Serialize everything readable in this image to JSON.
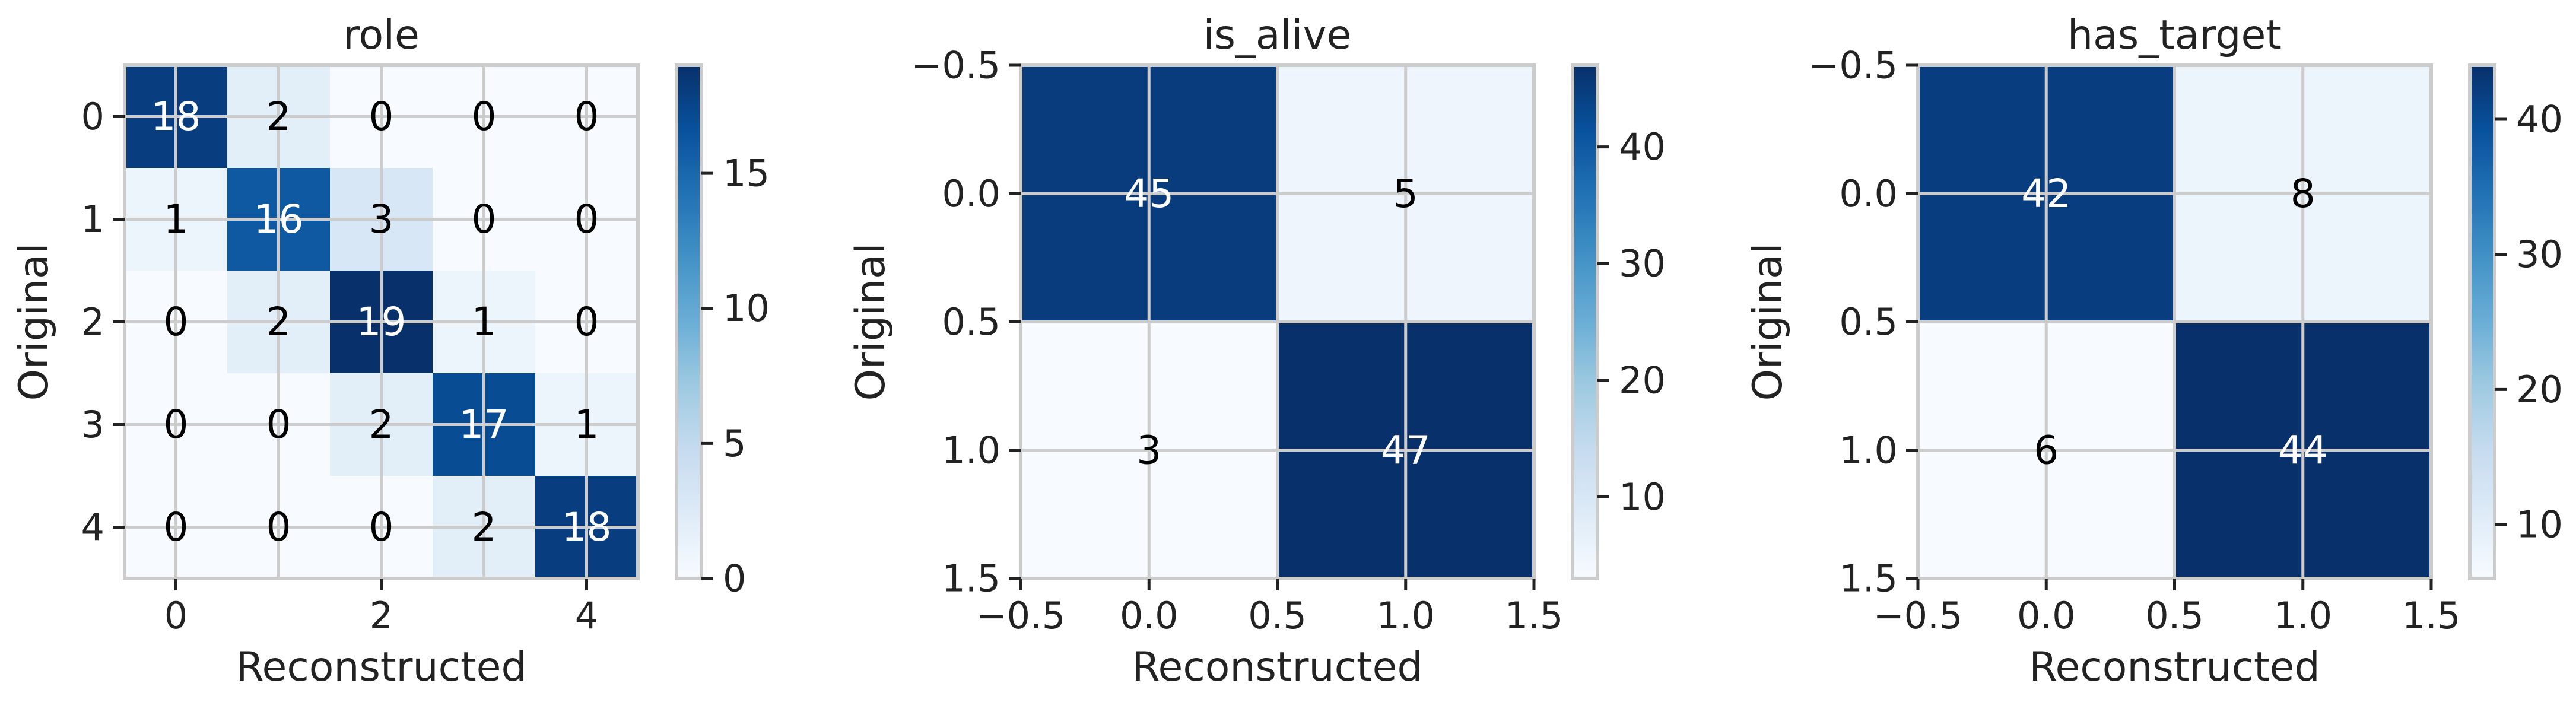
{
  "colormap": {
    "name": "Blues",
    "stops": [
      "#f7fbff",
      "#deebf7",
      "#c6dbef",
      "#9ecae1",
      "#6baed6",
      "#4292c6",
      "#2171b5",
      "#08519c",
      "#08306b"
    ],
    "label_dark": "#000000",
    "label_light": "#ffffff",
    "grid_color": "#cccccc"
  },
  "chart_data": [
    {
      "type": "heatmap",
      "title": "role",
      "xlabel": "Reconstructed",
      "ylabel": "Original",
      "categories": [
        0,
        1,
        2,
        3,
        4
      ],
      "matrix": [
        [
          18,
          2,
          0,
          0,
          0
        ],
        [
          1,
          16,
          3,
          0,
          0
        ],
        [
          0,
          2,
          19,
          1,
          0
        ],
        [
          0,
          0,
          2,
          17,
          1
        ],
        [
          0,
          0,
          0,
          2,
          18
        ]
      ],
      "xticks": [
        "0",
        "2",
        "4"
      ],
      "yticks": [
        "0",
        "1",
        "2",
        "3",
        "4"
      ],
      "vmin": 0,
      "vmax": 19,
      "colorbar_ticks": [
        "0",
        "5",
        "10",
        "15"
      ],
      "grid": true
    },
    {
      "type": "heatmap",
      "title": "is_alive",
      "xlabel": "Reconstructed",
      "ylabel": "Original",
      "categories": [
        0,
        1
      ],
      "matrix": [
        [
          45,
          5
        ],
        [
          3,
          47
        ]
      ],
      "xticks": [
        "−0.5",
        "0.0",
        "0.5",
        "1.0",
        "1.5"
      ],
      "yticks": [
        "−0.5",
        "0.0",
        "0.5",
        "1.0",
        "1.5"
      ],
      "vmin": 3,
      "vmax": 47,
      "colorbar_ticks": [
        "10",
        "20",
        "30",
        "40"
      ],
      "grid": true
    },
    {
      "type": "heatmap",
      "title": "has_target",
      "xlabel": "Reconstructed",
      "ylabel": "Original",
      "categories": [
        0,
        1
      ],
      "matrix": [
        [
          42,
          8
        ],
        [
          6,
          44
        ]
      ],
      "xticks": [
        "−0.5",
        "0.0",
        "0.5",
        "1.0",
        "1.5"
      ],
      "yticks": [
        "−0.5",
        "0.0",
        "0.5",
        "1.0",
        "1.5"
      ],
      "vmin": 6,
      "vmax": 44,
      "colorbar_ticks": [
        "10",
        "20",
        "30",
        "40"
      ],
      "grid": true
    }
  ]
}
